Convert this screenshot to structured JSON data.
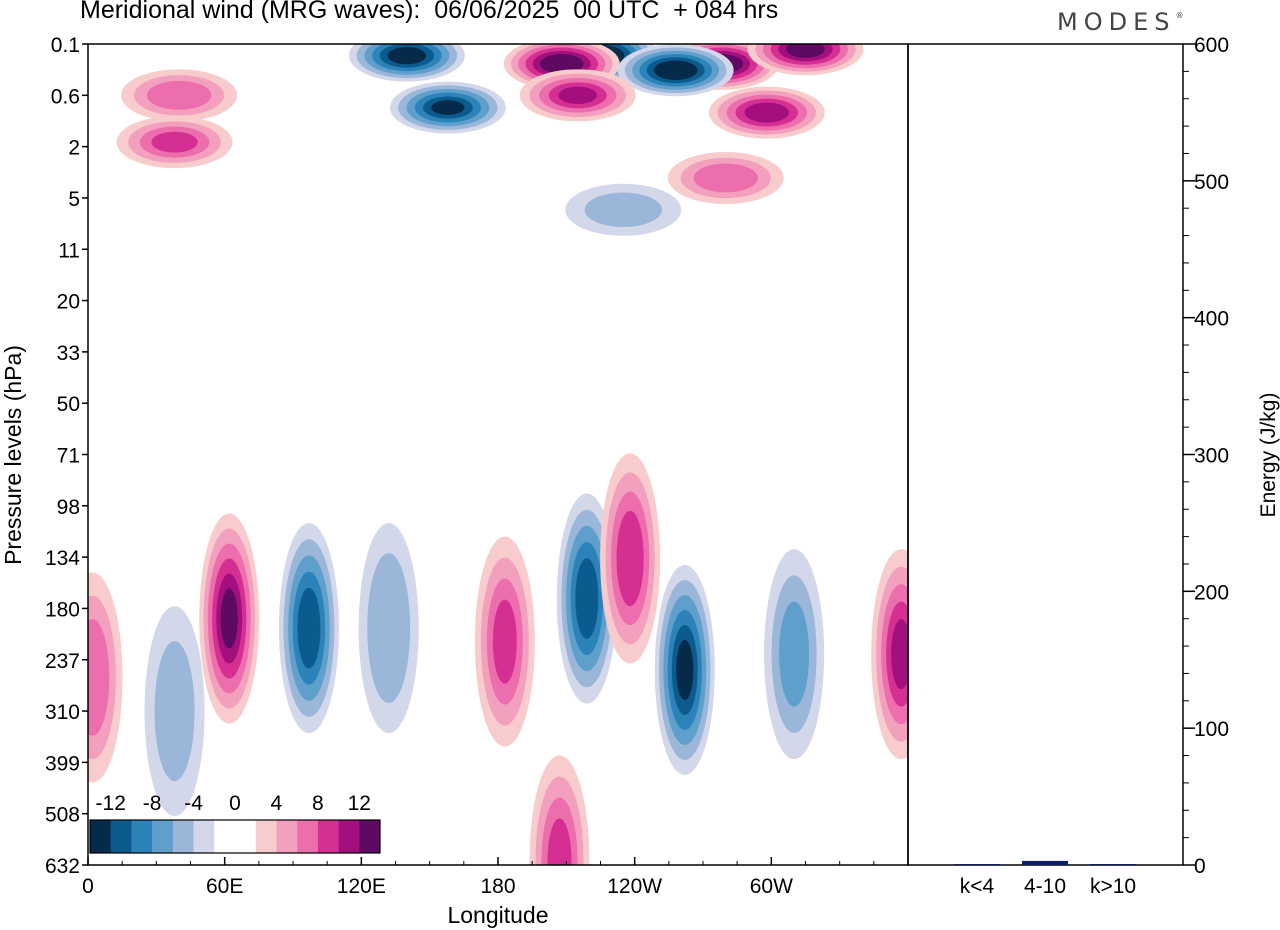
{
  "header": {
    "title": "Meridional wind (MRG waves):  06/06/2025  00 UTC  + 084 hrs",
    "logo": "MODES",
    "logo_mark": "®"
  },
  "chart_data": [
    {
      "type": "heatmap",
      "title": "Meridional wind (MRG waves):  06/06/2025  00 UTC  + 084 hrs",
      "xlabel": "Longitude",
      "ylabel": "Pressure levels (hPa)",
      "x_ticks": [
        "0",
        "60E",
        "120E",
        "180",
        "120W",
        "60W"
      ],
      "y_ticks": [
        "0.1",
        "0.6",
        "2",
        "5",
        "11",
        "20",
        "33",
        "50",
        "71",
        "98",
        "134",
        "180",
        "237",
        "310",
        "399",
        "508",
        "632"
      ],
      "colorbar": {
        "labels": [
          "-12",
          "-8",
          "-4",
          "0",
          "4",
          "8",
          "12"
        ],
        "levels": [
          -14,
          -12,
          -10,
          -8,
          -6,
          -4,
          -2,
          0,
          2,
          4,
          6,
          8,
          10,
          12,
          14
        ],
        "colors": [
          "#062a4a",
          "#0b5b8e",
          "#2b83ba",
          "#5f9fcc",
          "#9ab7d9",
          "#d3d7ea",
          "#ffffff",
          "#ffffff",
          "#f8cccc",
          "#f3a0bf",
          "#ec6eac",
          "#d62f94",
          "#a3107d",
          "#5e0a63"
        ]
      },
      "features": [
        {
          "lon": 225,
          "p": 0.15,
          "value": -15
        },
        {
          "lon": 140,
          "p": 0.15,
          "value": -13
        },
        {
          "lon": 208,
          "p": 0.2,
          "value": 14
        },
        {
          "lon": 278,
          "p": 0.2,
          "value": 14
        },
        {
          "lon": 258,
          "p": 0.25,
          "value": -14
        },
        {
          "lon": 315,
          "p": 0.12,
          "value": 13
        },
        {
          "lon": 40,
          "p": 0.6,
          "value": 7
        },
        {
          "lon": 38,
          "p": 1.8,
          "value": 8
        },
        {
          "lon": 158,
          "p": 0.8,
          "value": -12
        },
        {
          "lon": 215,
          "p": 0.6,
          "value": 10
        },
        {
          "lon": 298,
          "p": 0.9,
          "value": 11
        },
        {
          "lon": 280,
          "p": 3.5,
          "value": 7
        },
        {
          "lon": 235,
          "p": 6,
          "value": -4
        },
        {
          "lon": 62,
          "p": 190,
          "value": 12
        },
        {
          "lon": 97,
          "p": 200,
          "value": -11
        },
        {
          "lon": 132,
          "p": 200,
          "value": -5
        },
        {
          "lon": 183,
          "p": 215,
          "value": 8
        },
        {
          "lon": 219,
          "p": 170,
          "value": -11
        },
        {
          "lon": 238,
          "p": 135,
          "value": 9
        },
        {
          "lon": 262,
          "p": 250,
          "value": -12
        },
        {
          "lon": 310,
          "p": 230,
          "value": -6
        },
        {
          "lon": 357,
          "p": 230,
          "value": 10
        },
        {
          "lon": 207,
          "p": 620,
          "value": 8
        },
        {
          "lon": 2,
          "p": 260,
          "value": 7
        },
        {
          "lon": 38,
          "p": 310,
          "value": -4
        }
      ],
      "grid": false
    },
    {
      "type": "bar",
      "categories": [
        "k<4",
        "4-10",
        "k>10"
      ],
      "values": [
        0.5,
        3,
        0.5
      ],
      "ylabel": "Energy (J/kg)",
      "ylim": [
        0,
        600
      ],
      "y_ticks": [
        "0",
        "100",
        "200",
        "300",
        "400",
        "500",
        "600"
      ],
      "bar_color": "#0a1e6e"
    }
  ]
}
